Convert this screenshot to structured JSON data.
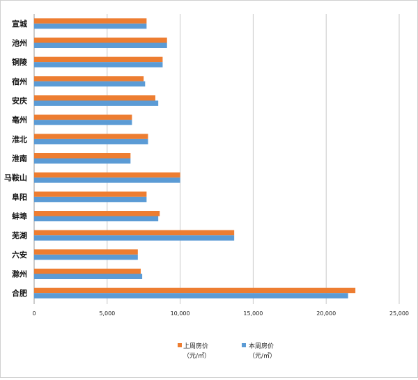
{
  "chart_data": {
    "type": "bar",
    "orientation": "horizontal",
    "categories": [
      "宣城",
      "池州",
      "铜陵",
      "宿州",
      "安庆",
      "亳州",
      "淮北",
      "淮南",
      "马鞍山",
      "阜阳",
      "蚌埠",
      "芜湖",
      "六安",
      "滁州",
      "合肥"
    ],
    "series": [
      {
        "name": "上周房价",
        "unit": "（元/㎡）",
        "color": "#ED7D31",
        "values": [
          7700,
          9100,
          8800,
          7500,
          8300,
          6700,
          7800,
          6600,
          10000,
          7700,
          8600,
          13700,
          7100,
          7300,
          22000
        ]
      },
      {
        "name": "本周房价",
        "unit": "（元/㎡）",
        "color": "#5B9BD5",
        "values": [
          7700,
          9100,
          8800,
          7600,
          8500,
          6700,
          7800,
          6600,
          10000,
          7700,
          8500,
          13700,
          7100,
          7400,
          21500
        ]
      }
    ],
    "xlim": [
      0,
      25000
    ],
    "xticks": [
      "0",
      "5,000",
      "10,000",
      "15,000",
      "20,000",
      "25,000"
    ],
    "grid": true,
    "legend_position": "bottom"
  }
}
